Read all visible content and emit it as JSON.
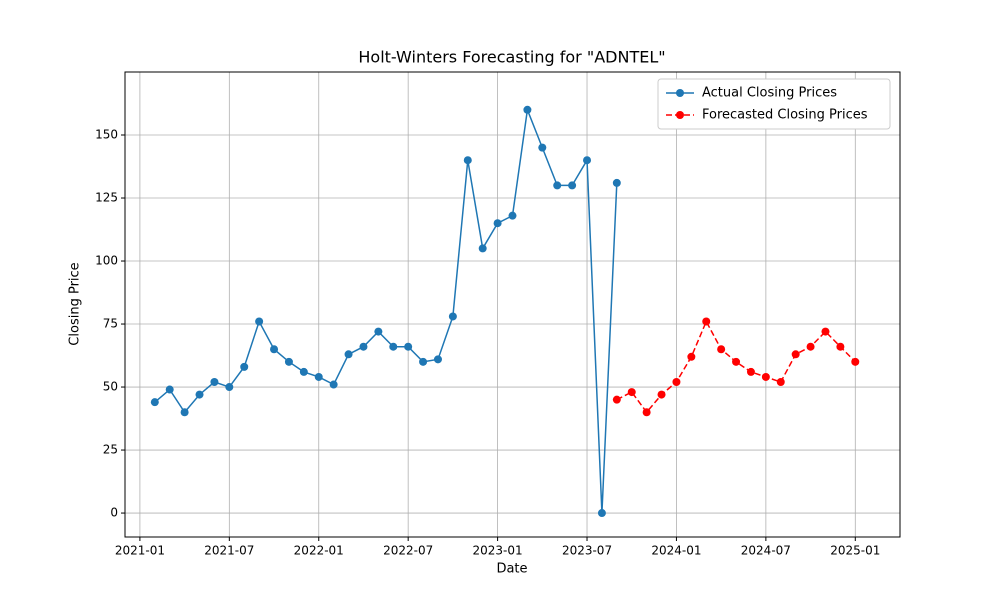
{
  "chart_data": {
    "type": "line",
    "title": "Holt-Winters Forecasting for \"ADNTEL\"",
    "x_label": "Date",
    "y_label": "Closing Price",
    "xlim": [
      "2020-12",
      "2025-04"
    ],
    "xticks": [
      "2021-01",
      "2021-07",
      "2022-01",
      "2022-07",
      "2023-01",
      "2023-07",
      "2024-01",
      "2024-07",
      "2025-01"
    ],
    "ylim": [
      -9.5,
      175
    ],
    "yticks": [
      0,
      25,
      50,
      75,
      100,
      125,
      150
    ],
    "grid": true,
    "legend": "upper-right",
    "series": [
      {
        "name": "Actual Closing Prices",
        "color": "#1f77b4",
        "linestyle": "solid",
        "x": [
          "2021-02",
          "2021-03",
          "2021-04",
          "2021-05",
          "2021-06",
          "2021-07",
          "2021-08",
          "2021-09",
          "2021-10",
          "2021-11",
          "2021-12",
          "2022-01",
          "2022-02",
          "2022-03",
          "2022-04",
          "2022-05",
          "2022-06",
          "2022-07",
          "2022-08",
          "2022-09",
          "2022-10",
          "2022-11",
          "2022-12",
          "2023-01",
          "2023-02",
          "2023-03",
          "2023-04",
          "2023-05",
          "2023-06",
          "2023-07",
          "2023-08",
          "2023-09"
        ],
        "values": [
          44,
          49,
          40,
          47,
          52,
          50,
          58,
          76,
          65,
          60,
          56,
          54,
          51,
          63,
          66,
          72,
          66,
          66,
          60,
          61,
          78,
          140,
          105,
          115,
          118,
          160,
          145,
          130,
          130,
          140,
          0,
          131
        ]
      },
      {
        "name": "Forecasted Closing Prices",
        "color": "#ff0000",
        "linestyle": "dashed",
        "x": [
          "2023-09",
          "2023-10",
          "2023-11",
          "2023-12",
          "2024-01",
          "2024-02",
          "2024-03",
          "2024-04",
          "2024-05",
          "2024-06",
          "2024-07",
          "2024-08",
          "2024-09",
          "2024-10",
          "2024-11",
          "2024-12",
          "2025-01"
        ],
        "values": [
          45,
          48,
          40,
          47,
          52,
          62,
          76,
          65,
          60,
          56,
          54,
          52,
          63,
          66,
          72,
          66,
          60
        ]
      }
    ]
  }
}
